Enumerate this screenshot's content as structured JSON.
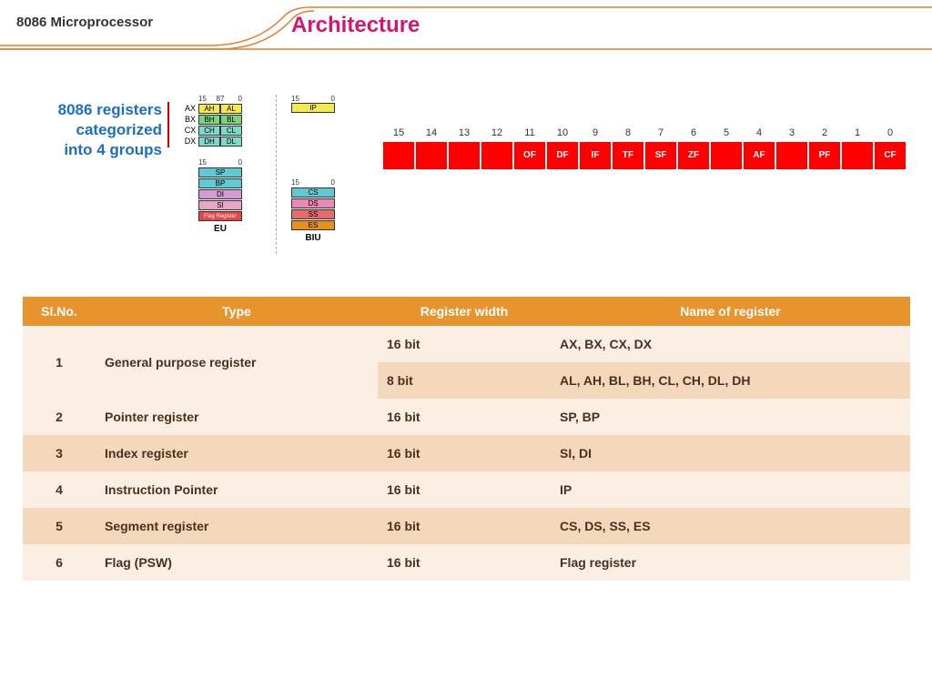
{
  "header": {
    "subtitle": "8086 Microprocessor",
    "title": "Architecture"
  },
  "sidetext": {
    "l1": "8086 registers",
    "l2": "categorized",
    "l3": "into 4 groups"
  },
  "curve_color": "#e57b2a",
  "diag": {
    "gp": {
      "bits": [
        "15",
        "8",
        "7",
        "0"
      ],
      "rows": [
        {
          "n": "AX",
          "h": "AH",
          "l": "AL",
          "ch": "#f5e94d",
          "cl": "#f5e94d"
        },
        {
          "n": "BX",
          "h": "BH",
          "l": "BL",
          "ch": "#7bd37b",
          "cl": "#7bd37b"
        },
        {
          "n": "CX",
          "h": "CH",
          "l": "CL",
          "ch": "#7fd9c9",
          "cl": "#7fd9c9"
        },
        {
          "n": "DX",
          "h": "DH",
          "l": "DL",
          "ch": "#7fd9c9",
          "cl": "#7fd9c9"
        }
      ]
    },
    "sp": {
      "bits": [
        "15",
        "0"
      ],
      "rows": [
        {
          "t": "SP",
          "c": "#5fc9d4"
        },
        {
          "t": "BP",
          "c": "#5fc9d4"
        },
        {
          "t": "DI",
          "c": "#d49cd4"
        },
        {
          "t": "SI",
          "c": "#e8a5c5"
        },
        {
          "t": "Flag Register",
          "c": "#e84545"
        }
      ],
      "label": "EU"
    },
    "ip": {
      "bits": [
        "15",
        "0"
      ],
      "t": "IP",
      "c": "#f5e94d"
    },
    "seg": {
      "bits": [
        "15",
        "0"
      ],
      "rows": [
        {
          "t": "CS",
          "c": "#5fc9d4"
        },
        {
          "t": "DS",
          "c": "#e88ab5"
        },
        {
          "t": "SS",
          "c": "#e86b6b"
        },
        {
          "t": "ES",
          "c": "#e8901a"
        }
      ],
      "label": "BIU"
    }
  },
  "flags": {
    "nums": [
      "15",
      "14",
      "13",
      "12",
      "11",
      "10",
      "9",
      "8",
      "7",
      "6",
      "5",
      "4",
      "3",
      "2",
      "1",
      "0"
    ],
    "cells": [
      "",
      "",
      "",
      "",
      "OF",
      "DF",
      "IF",
      "TF",
      "SF",
      "ZF",
      "",
      "AF",
      "",
      "PF",
      "",
      "CF"
    ],
    "color": "#ff0000"
  },
  "table": {
    "header_color": "#e8942e",
    "row_odd": "#fbeee2",
    "row_even": "#f4d8bc",
    "cols": [
      "Sl.No.",
      "Type",
      "Register width",
      "Name of register"
    ],
    "rows": [
      {
        "n": "1",
        "type": "General purpose register",
        "w": "16 bit",
        "name": "AX, BX, CX, DX",
        "rowspan": 2
      },
      {
        "n": "",
        "type": "",
        "w": "8 bit",
        "name": "AL, AH, BL, BH, CL, CH, DL, DH"
      },
      {
        "n": "2",
        "type": "Pointer register",
        "w": "16 bit",
        "name": "SP, BP"
      },
      {
        "n": "3",
        "type": "Index register",
        "w": "16 bit",
        "name": "SI, DI"
      },
      {
        "n": "4",
        "type": "Instruction Pointer",
        "w": "16 bit",
        "name": "IP"
      },
      {
        "n": "5",
        "type": "Segment register",
        "w": "16 bit",
        "name": "CS, DS, SS, ES"
      },
      {
        "n": "6",
        "type": "Flag (PSW)",
        "w": "16 bit",
        "name": "Flag register"
      }
    ]
  }
}
